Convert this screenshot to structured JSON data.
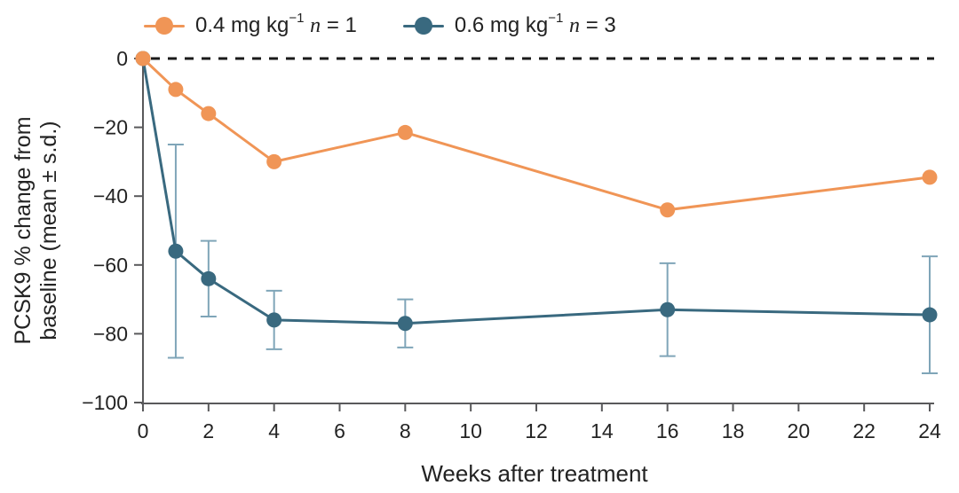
{
  "legend": {
    "items": [
      {
        "dose": "0.4 mg kg",
        "sup": "−1",
        "n": "n",
        "eq": " = 1",
        "color": "#F09556"
      },
      {
        "dose": "0.6 mg kg",
        "sup": "−1",
        "n": "n",
        "eq": " = 3",
        "color": "#39697F"
      }
    ]
  },
  "chart_data": {
    "type": "line",
    "title": "",
    "xlabel": "Weeks after treatment",
    "ylabel": "PCSK9 % change from baseline (mean ± s.d.)",
    "ylabel_lines": [
      "PCSK9 % change from",
      "baseline (mean ± s.d.)"
    ],
    "xlim": [
      0,
      24
    ],
    "ylim": [
      -100,
      0
    ],
    "x_ticks": [
      0,
      2,
      4,
      6,
      8,
      10,
      12,
      14,
      16,
      18,
      20,
      22,
      24
    ],
    "y_ticks": [
      0,
      -20,
      -40,
      -60,
      -80,
      -100
    ],
    "grid": false,
    "legend_position": "top-left",
    "reference_line": {
      "y": 0,
      "style": "dashed",
      "color": "#1A1A1A"
    },
    "axis_color": "#59595B",
    "text_color": "#232323",
    "series": [
      {
        "name": "0.4 mg kg⁻¹ n = 1",
        "color": "#F09556",
        "x": [
          0,
          1,
          2,
          4,
          8,
          16,
          24
        ],
        "y": [
          0,
          -9,
          -16,
          -30,
          -21.5,
          -44,
          -34.5
        ],
        "sd": null
      },
      {
        "name": "0.6 mg kg⁻¹ n = 3",
        "color": "#39697F",
        "error_color": "#7FA5B8",
        "x": [
          0,
          1,
          2,
          4,
          8,
          16,
          24
        ],
        "y": [
          0,
          -56,
          -64,
          -76,
          -77,
          -73,
          -74.5
        ],
        "sd": [
          null,
          31,
          11,
          8.5,
          7,
          13.5,
          17
        ]
      }
    ]
  }
}
